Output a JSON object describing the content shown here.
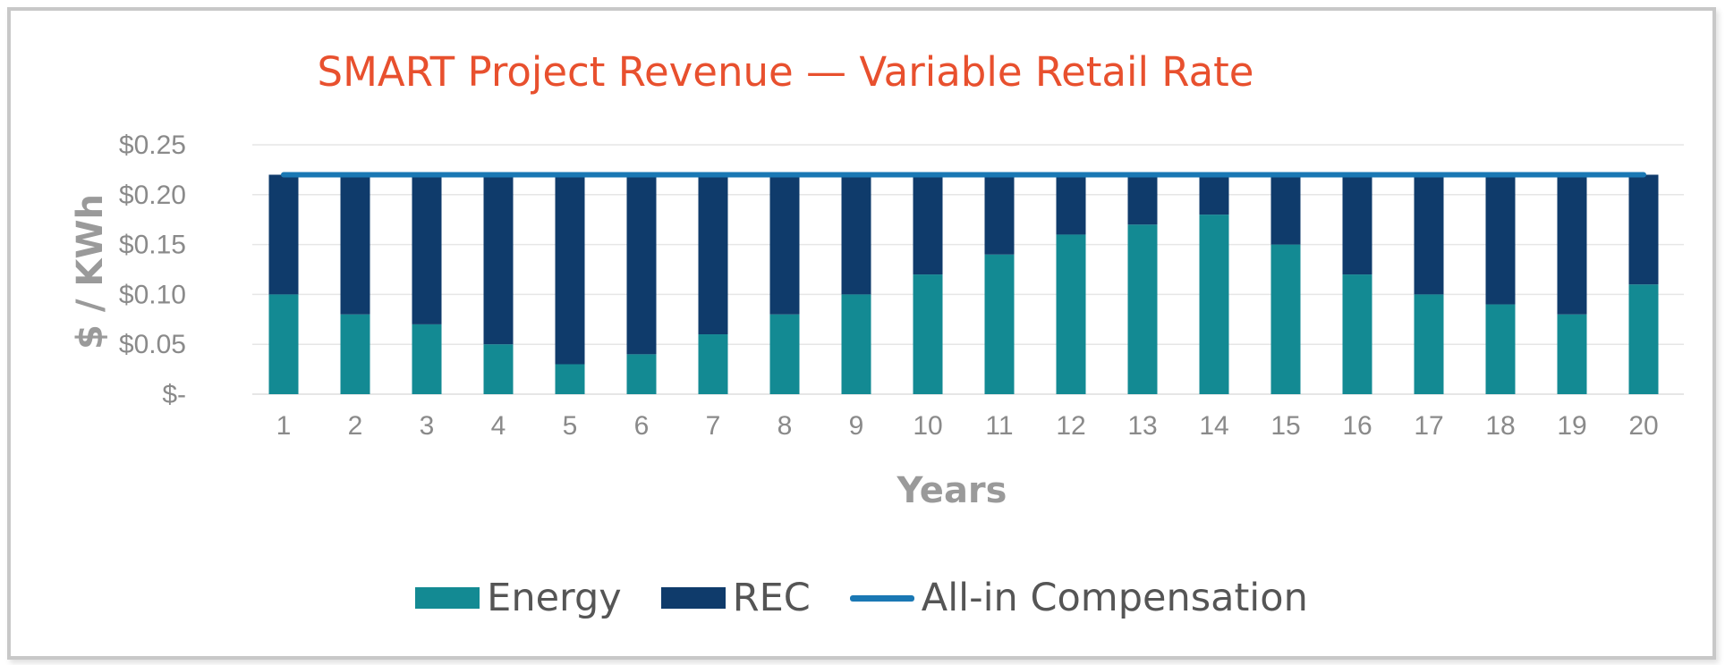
{
  "colors": {
    "energy": "#138a93",
    "rec": "#0f3b6b",
    "all_in": "#1a78b4",
    "title": "#e8502e",
    "grid": "#e6e6e6",
    "axis_text": "#8a8a8a"
  },
  "chart_data": {
    "type": "bar",
    "stacked": true,
    "title": "SMART Project Revenue — Variable Retail Rate",
    "xlabel": "Years",
    "ylabel": "$ / KWh",
    "categories": [
      "1",
      "2",
      "3",
      "4",
      "5",
      "6",
      "7",
      "8",
      "9",
      "10",
      "11",
      "12",
      "13",
      "14",
      "15",
      "16",
      "17",
      "18",
      "19",
      "20"
    ],
    "y_tick_labels": [
      "$-",
      "$0.05",
      "$0.10",
      "$0.15",
      "$0.20",
      "$0.25"
    ],
    "ylim": [
      0,
      0.25
    ],
    "grid": true,
    "legend_position": "bottom",
    "series": [
      {
        "name": "Energy",
        "kind": "bar",
        "values": [
          0.1,
          0.08,
          0.07,
          0.05,
          0.03,
          0.04,
          0.06,
          0.08,
          0.1,
          0.12,
          0.14,
          0.16,
          0.17,
          0.18,
          0.15,
          0.12,
          0.1,
          0.09,
          0.08,
          0.11
        ]
      },
      {
        "name": "REC",
        "kind": "bar",
        "values": [
          0.12,
          0.14,
          0.15,
          0.17,
          0.19,
          0.18,
          0.16,
          0.14,
          0.12,
          0.1,
          0.08,
          0.06,
          0.05,
          0.04,
          0.07,
          0.1,
          0.12,
          0.13,
          0.14,
          0.11
        ]
      },
      {
        "name": "All-in Compensation",
        "kind": "line",
        "values": [
          0.22,
          0.22,
          0.22,
          0.22,
          0.22,
          0.22,
          0.22,
          0.22,
          0.22,
          0.22,
          0.22,
          0.22,
          0.22,
          0.22,
          0.22,
          0.22,
          0.22,
          0.22,
          0.22,
          0.22
        ]
      }
    ]
  }
}
